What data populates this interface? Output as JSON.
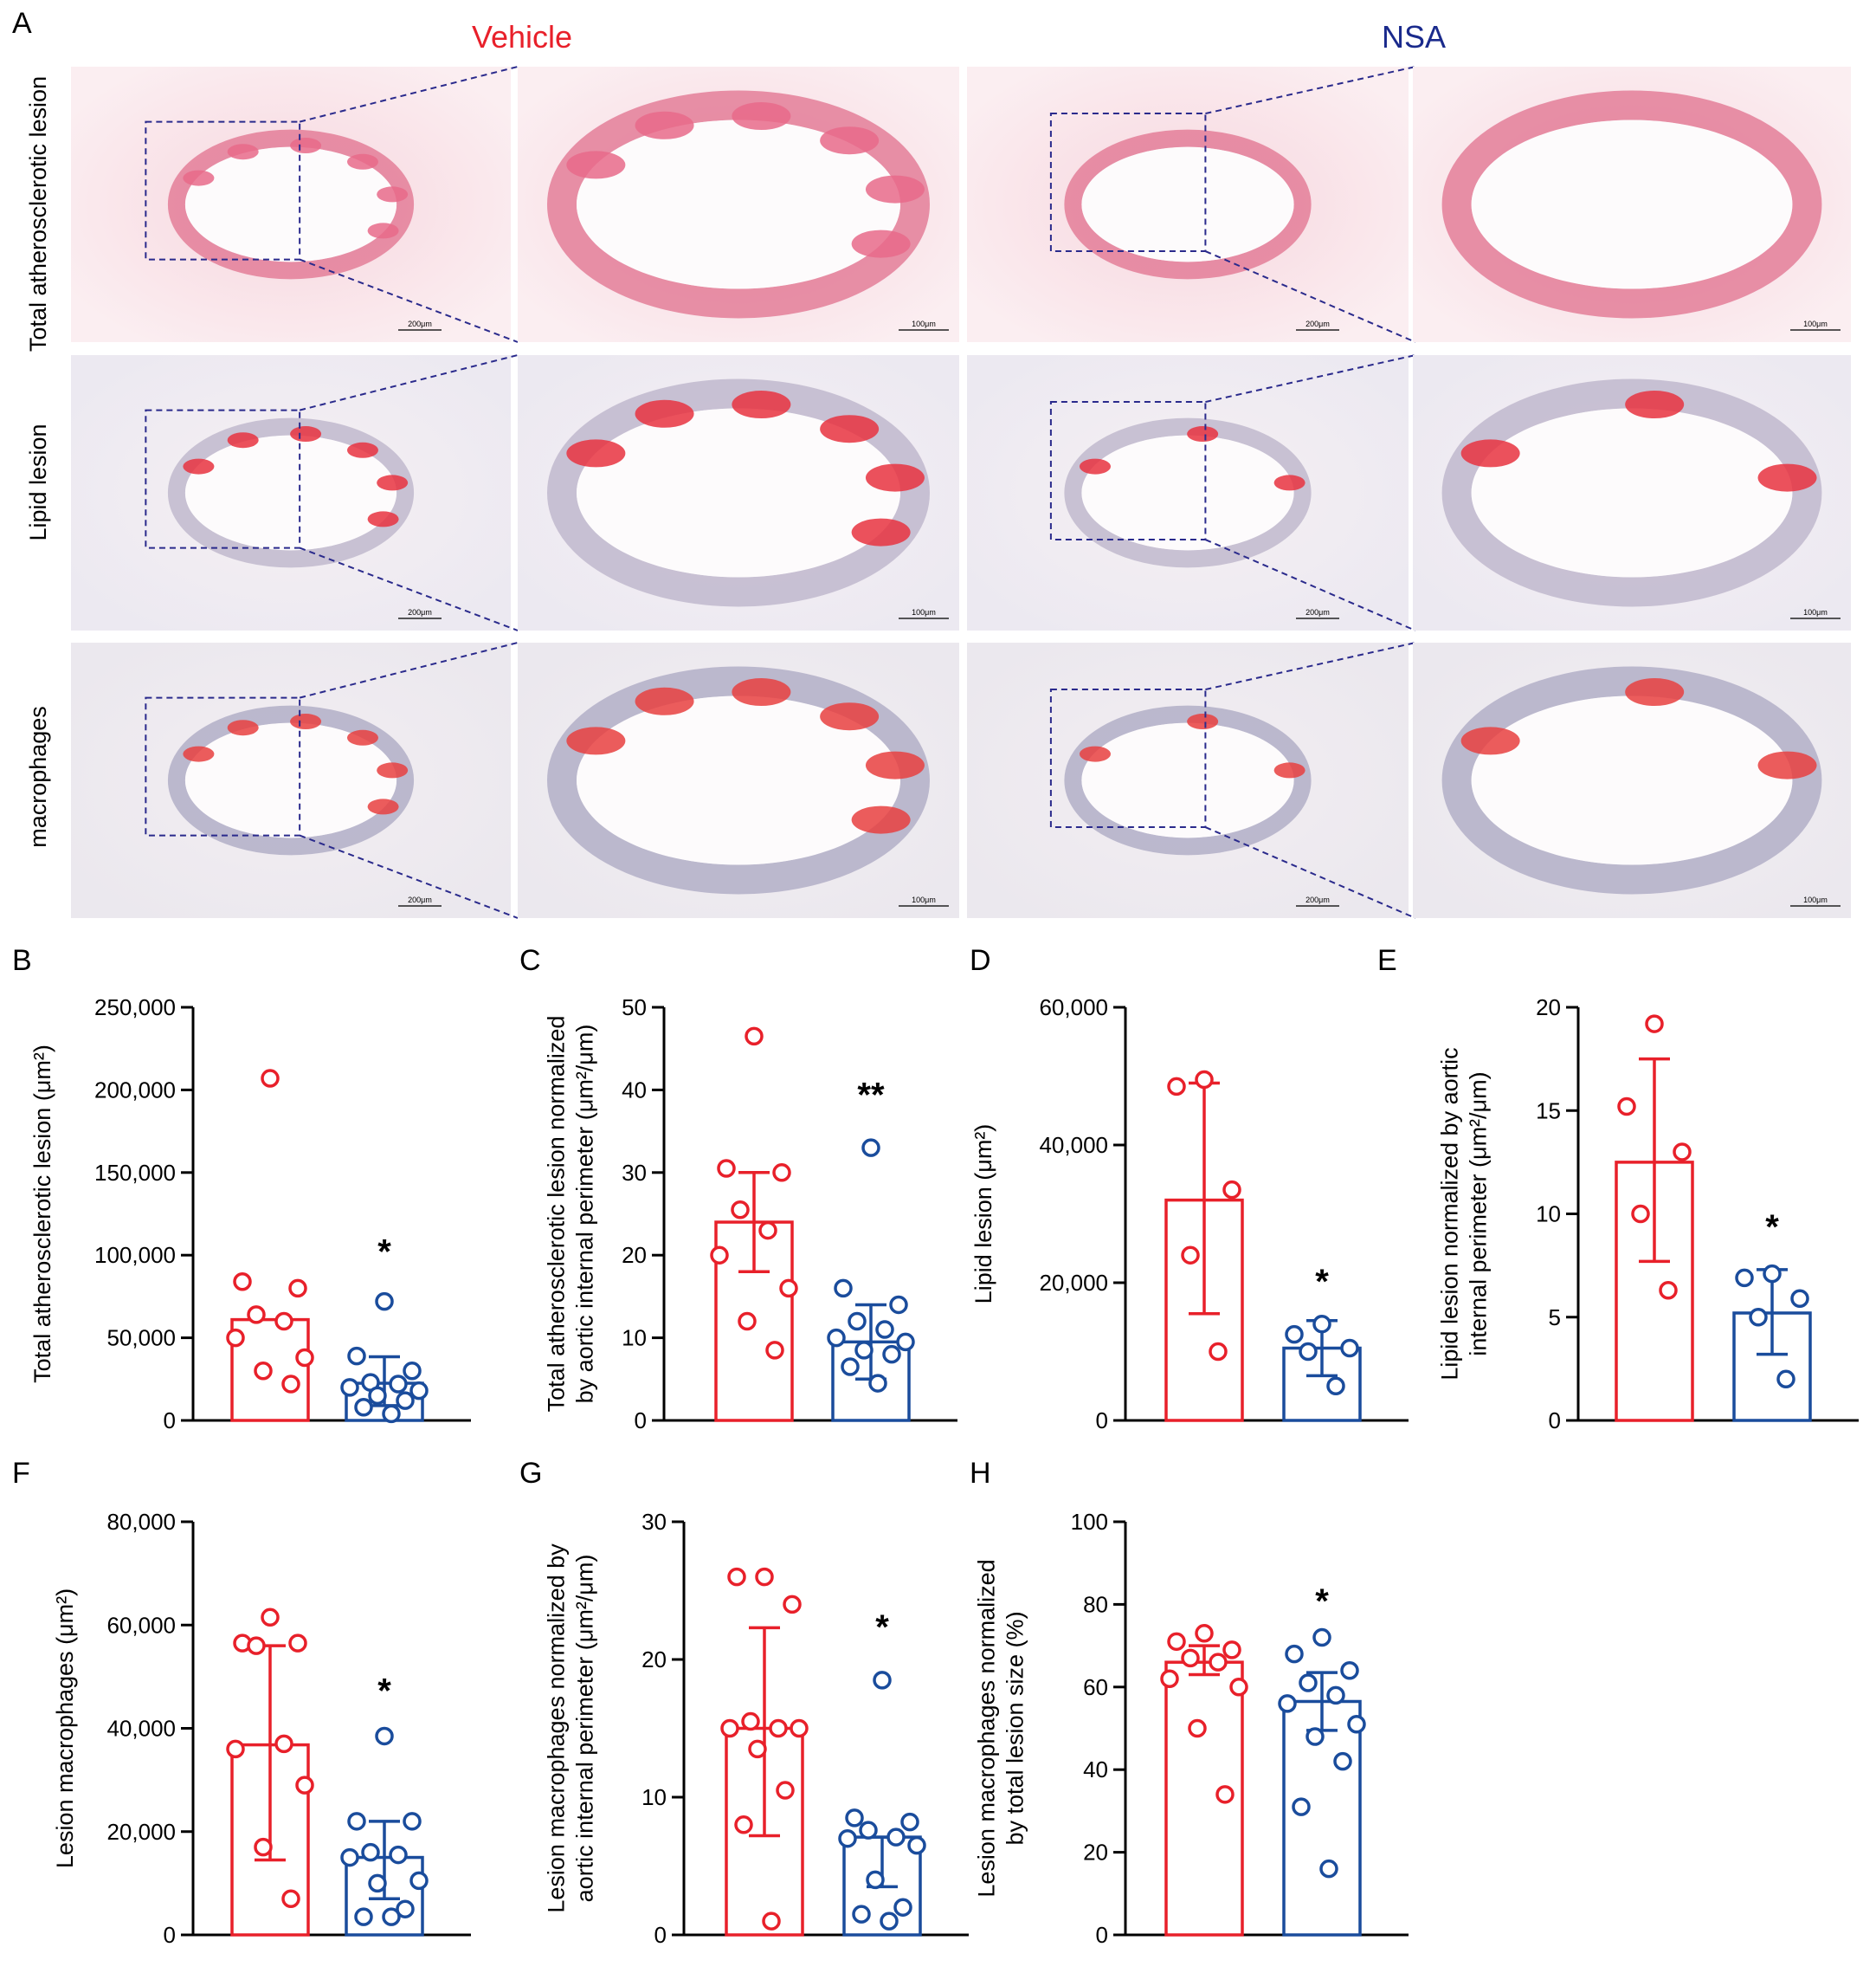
{
  "panel_A": {
    "letter": "A",
    "groups": [
      {
        "label": "Vehicle",
        "color": "#e8202a"
      },
      {
        "label": "NSA",
        "color": "#1a2a8c"
      }
    ],
    "rows": [
      {
        "label": "Total atherosclerotic lesion",
        "stain": "he"
      },
      {
        "label": "Lipid lesion",
        "stain": "oil"
      },
      {
        "label": "macrophages",
        "stain": "ihc"
      }
    ],
    "scalebar_low": "200μm",
    "scalebar_high": "100μm"
  },
  "colors": {
    "vehicle": "#e8202a",
    "nsa": "#1a4c9c"
  },
  "chart_data": [
    {
      "panel": "B",
      "type": "bar",
      "ylabel": "Total atherosclerotic lesion (μm²)",
      "ylim": [
        0,
        250000
      ],
      "ticks": [
        0,
        50000,
        100000,
        150000,
        200000,
        250000
      ],
      "tick_labels": [
        "0",
        "50,000",
        "100,000",
        "150,000",
        "200,000",
        "250,000"
      ],
      "series": [
        {
          "group": "vehicle",
          "mean": 61000,
          "err": [
            41000,
            81000
          ],
          "show_err": false,
          "points": [
            207000,
            84000,
            80000,
            64000,
            60000,
            50000,
            38000,
            30000,
            22000
          ]
        },
        {
          "group": "nsa",
          "mean": 22500,
          "err": [
            9000,
            38500
          ],
          "show_err": true,
          "points": [
            72000,
            39000,
            30000,
            23000,
            22000,
            20000,
            18000,
            15000,
            12000,
            8000,
            4000
          ]
        }
      ],
      "significance": "*",
      "sig_value": 95000
    },
    {
      "panel": "C",
      "type": "bar",
      "ylabel": "Total atherosclerotic lesion normalized by aortic internal perimeter (μm²/μm)",
      "ylim": [
        0,
        50
      ],
      "ticks": [
        0,
        10,
        20,
        30,
        40,
        50
      ],
      "tick_labels": [
        "0",
        "10",
        "20",
        "30",
        "40",
        "50"
      ],
      "series": [
        {
          "group": "vehicle",
          "mean": 24,
          "err": [
            18,
            30
          ],
          "show_err": true,
          "points": [
            46.5,
            30.5,
            30,
            25.5,
            23,
            20,
            16,
            12,
            8.5
          ]
        },
        {
          "group": "nsa",
          "mean": 9.5,
          "err": [
            5,
            14
          ],
          "show_err": true,
          "points": [
            33,
            16,
            14,
            12,
            11,
            10,
            9.5,
            8.5,
            8,
            6.5,
            4.5
          ]
        }
      ],
      "significance": "**",
      "sig_value": 38
    },
    {
      "panel": "D",
      "type": "bar",
      "ylabel": "Lipid lesion (μm²)",
      "ylim": [
        0,
        60000
      ],
      "ticks": [
        0,
        20000,
        40000,
        60000
      ],
      "tick_labels": [
        "0",
        "20,000",
        "40,000",
        "60,000"
      ],
      "series": [
        {
          "group": "vehicle",
          "mean": 32000,
          "err": [
            15500,
            49000
          ],
          "show_err": true,
          "points": [
            49500,
            48500,
            33500,
            24000,
            10000
          ]
        },
        {
          "group": "nsa",
          "mean": 10500,
          "err": [
            6500,
            14500
          ],
          "show_err": true,
          "points": [
            14000,
            12500,
            10500,
            10000,
            5000
          ]
        }
      ],
      "significance": "*",
      "sig_value": 18500
    },
    {
      "panel": "E",
      "type": "bar",
      "ylabel": "Lipid lesion normalized by aortic internal perimeter (μm²/μm)",
      "ylim": [
        0,
        20
      ],
      "ticks": [
        0,
        5,
        10,
        15,
        20
      ],
      "tick_labels": [
        "0",
        "5",
        "10",
        "15",
        "20"
      ],
      "series": [
        {
          "group": "vehicle",
          "mean": 12.5,
          "err": [
            7.7,
            17.5
          ],
          "show_err": true,
          "points": [
            19.2,
            15.2,
            13,
            10,
            6.3
          ]
        },
        {
          "group": "nsa",
          "mean": 5.2,
          "err": [
            3.2,
            7.3
          ],
          "show_err": true,
          "points": [
            7.1,
            6.9,
            5.9,
            5,
            2
          ]
        }
      ],
      "significance": "*",
      "sig_value": 8.8
    },
    {
      "panel": "F",
      "type": "bar",
      "ylabel": "Lesion macrophages (μm²)",
      "ylim": [
        0,
        80000
      ],
      "ticks": [
        0,
        20000,
        40000,
        60000,
        80000
      ],
      "tick_labels": [
        "0",
        "20,000",
        "40,000",
        "60,000",
        "80,000"
      ],
      "series": [
        {
          "group": "vehicle",
          "mean": 36800,
          "err": [
            14500,
            56000
          ],
          "show_err": true,
          "points": [
            61500,
            56500,
            56500,
            56000,
            37000,
            36000,
            29000,
            17000,
            7000
          ]
        },
        {
          "group": "nsa",
          "mean": 15000,
          "err": [
            7000,
            22000
          ],
          "show_err": true,
          "points": [
            38500,
            22000,
            22000,
            16000,
            15500,
            15000,
            10500,
            10000,
            5000,
            3500,
            3500
          ]
        }
      ],
      "significance": "*",
      "sig_value": 45000
    },
    {
      "panel": "G",
      "type": "bar",
      "ylabel": "Lesion macrophages normalized by aortic internal perimeter (μm²/μm)",
      "ylim": [
        0,
        30
      ],
      "ticks": [
        0,
        10,
        20,
        30
      ],
      "tick_labels": [
        "0",
        "10",
        "20",
        "30"
      ],
      "series": [
        {
          "group": "vehicle",
          "mean": 15,
          "err": [
            7.2,
            22.3
          ],
          "show_err": true,
          "points": [
            26,
            26,
            24,
            15.5,
            15,
            15,
            15,
            13.5,
            10.5,
            8,
            1
          ]
        },
        {
          "group": "nsa",
          "mean": 7.1,
          "err": [
            3.5,
            7.1
          ],
          "show_err": true,
          "points": [
            18.5,
            8.5,
            8.2,
            7.6,
            7.1,
            7,
            6.5,
            4,
            2,
            1.5,
            1
          ]
        }
      ],
      "significance": "*",
      "sig_value": 21.5
    },
    {
      "panel": "H",
      "type": "bar",
      "ylabel": "Lesion macrophages normalized by total lesion size (%)",
      "ylim": [
        0,
        100
      ],
      "ticks": [
        0,
        20,
        40,
        60,
        80,
        100
      ],
      "tick_labels": [
        "0",
        "20",
        "40",
        "60",
        "80",
        "100"
      ],
      "series": [
        {
          "group": "vehicle",
          "mean": 66,
          "err": [
            63,
            70
          ],
          "show_err": true,
          "points": [
            73,
            71,
            69,
            67,
            66,
            62,
            60,
            50,
            34
          ]
        },
        {
          "group": "nsa",
          "mean": 56.5,
          "err": [
            49.5,
            63.5
          ],
          "show_err": true,
          "points": [
            72,
            68,
            64,
            61,
            58,
            56,
            51,
            48,
            42,
            31,
            16
          ]
        }
      ],
      "significance": "*",
      "sig_value": 78
    }
  ]
}
